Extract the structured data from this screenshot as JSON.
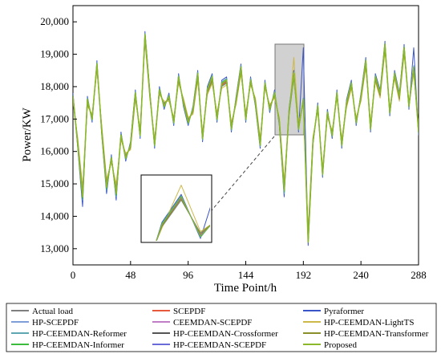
{
  "chart_data": {
    "type": "line",
    "title": "",
    "xlabel": "Time Point/h",
    "ylabel": "Power/KW",
    "xlim": [
      0,
      288
    ],
    "ylim": [
      12500,
      20500
    ],
    "x_ticks": [
      0,
      48,
      96,
      144,
      192,
      240,
      288
    ],
    "x_tick_labels": [
      "0",
      "48",
      "96",
      "144",
      "192",
      "240",
      "288"
    ],
    "y_ticks": [
      13000,
      14000,
      15000,
      16000,
      17000,
      18000,
      19000,
      20000
    ],
    "y_tick_labels": [
      "13,000",
      "14,000",
      "15,000",
      "16,000",
      "17,000",
      "18,000",
      "19,000",
      "20,000"
    ],
    "grid": false,
    "legend_position": "bottom",
    "inset": {
      "x_range": [
        176,
        190
      ],
      "y_range": [
        16500,
        19200
      ]
    },
    "x_points": [
      0,
      4,
      8,
      12,
      16,
      20,
      24,
      28,
      32,
      36,
      40,
      44,
      48,
      52,
      56,
      60,
      64,
      68,
      72,
      76,
      80,
      84,
      88,
      92,
      96,
      100,
      104,
      108,
      112,
      116,
      120,
      124,
      128,
      132,
      136,
      140,
      144,
      148,
      152,
      156,
      160,
      164,
      168,
      172,
      176,
      180,
      184,
      188,
      192,
      196,
      200,
      204,
      208,
      212,
      216,
      220,
      224,
      228,
      232,
      236,
      240,
      244,
      248,
      252,
      256,
      260,
      264,
      268,
      272,
      276,
      280,
      284,
      288
    ],
    "series": [
      {
        "name": "Actual load",
        "color": "#7f7f7f",
        "values": [
          17700,
          16200,
          14600,
          17600,
          17000,
          18700,
          16600,
          14900,
          15800,
          14700,
          16500,
          15800,
          16200,
          17800,
          16500,
          19600,
          17800,
          16200,
          17900,
          17400,
          17700,
          16900,
          18300,
          17500,
          16900,
          17300,
          18400,
          16400,
          17900,
          18300,
          17000,
          18100,
          18200,
          16700,
          17600,
          18600,
          17000,
          18200,
          17500,
          16200,
          18100,
          17300,
          17800,
          16900,
          14800,
          17200,
          18400,
          16700,
          17600,
          13200,
          16300,
          17400,
          15300,
          17200,
          16500,
          17800,
          16200,
          17500,
          18100,
          16900,
          17700,
          18800,
          16700,
          18300,
          17800,
          19300,
          17200,
          18400,
          17700,
          19200,
          17400,
          18600,
          16600
        ]
      },
      {
        "name": "SCEPDF",
        "color": "#e8583d",
        "values": [
          17650,
          16300,
          14700,
          17500,
          17050,
          18600,
          16700,
          15000,
          15750,
          14800,
          16450,
          15850,
          16150,
          17700,
          16600,
          19500,
          17750,
          16300,
          17850,
          17450,
          17650,
          16950,
          18200,
          17550,
          16950,
          17250,
          18300,
          16500,
          17850,
          18200,
          17100,
          18050,
          18150,
          16800,
          17550,
          18500,
          17100,
          18150,
          17550,
          16300,
          18050,
          17350,
          17750,
          16950,
          14900,
          17150,
          18300,
          16800,
          17550,
          13400,
          16350,
          17350,
          15400,
          17150,
          16550,
          17750,
          16300,
          17450,
          18050,
          16950,
          17650,
          18700,
          16800,
          18250,
          17750,
          19200,
          17250,
          18350,
          17650,
          19100,
          17450,
          18500,
          16700
        ]
      },
      {
        "name": "Pyraformer",
        "color": "#3a55c8",
        "values": [
          17800,
          16100,
          14300,
          17700,
          16900,
          18800,
          16500,
          14700,
          15900,
          14500,
          16600,
          15700,
          16300,
          17900,
          16400,
          19700,
          17900,
          16100,
          18000,
          17300,
          17800,
          16800,
          18400,
          17400,
          16800,
          17400,
          18500,
          16300,
          18000,
          18400,
          16900,
          18200,
          18300,
          16600,
          17700,
          18700,
          16900,
          18300,
          17400,
          16100,
          18200,
          17200,
          17900,
          16800,
          14600,
          17300,
          18500,
          16600,
          19200,
          13100,
          16200,
          17500,
          15200,
          17300,
          16400,
          17900,
          16100,
          17600,
          18200,
          16800,
          17800,
          18900,
          16600,
          18400,
          17900,
          19400,
          17100,
          18500,
          17800,
          19300,
          17300,
          19200,
          16500
        ]
      },
      {
        "name": "HP-SCEPDF",
        "color": "#7f9ed8",
        "values": [
          17600,
          16350,
          14800,
          17450,
          17100,
          18550,
          16750,
          15100,
          15700,
          14900,
          16400,
          15900,
          16100,
          17650,
          16650,
          19450,
          17700,
          16350,
          17800,
          17500,
          17600,
          17000,
          18150,
          17600,
          17000,
          17200,
          18250,
          16550,
          17800,
          18150,
          17150,
          18000,
          18100,
          16850,
          17500,
          18450,
          17150,
          18100,
          17600,
          16350,
          18000,
          17400,
          17700,
          17000,
          15000,
          17100,
          18250,
          16850,
          17500,
          13500,
          16400,
          17300,
          15450,
          17100,
          16600,
          17700,
          16350,
          17400,
          18000,
          17000,
          17600,
          18650,
          16850,
          18200,
          17700,
          19150,
          17300,
          18300,
          17600,
          19050,
          17500,
          18450,
          16750
        ]
      },
      {
        "name": "CEEMDAN-SCEPDF",
        "color": "#c07ec6",
        "values": [
          17700,
          16250,
          14650,
          17550,
          17000,
          18650,
          16650,
          14950,
          15800,
          14750,
          16500,
          15800,
          16200,
          17750,
          16550,
          19550,
          17800,
          16250,
          17900,
          17400,
          17700,
          16900,
          18250,
          17500,
          16900,
          17300,
          18350,
          16450,
          17900,
          18250,
          17050,
          18100,
          18200,
          16750,
          17600,
          18550,
          17050,
          18200,
          17500,
          16250,
          18100,
          17300,
          17800,
          16900,
          14850,
          17200,
          18350,
          16750,
          17600,
          13300,
          16300,
          17400,
          15350,
          17200,
          16500,
          17800,
          16250,
          17500,
          18100,
          16900,
          17700,
          18750,
          16750,
          18300,
          17800,
          19250,
          17200,
          18400,
          17700,
          19150,
          17400,
          18550,
          16650
        ]
      },
      {
        "name": "HP-CEEMDAN-LightTS",
        "color": "#cdb84a",
        "values": [
          17550,
          16400,
          14900,
          17400,
          17150,
          18500,
          16800,
          15150,
          15650,
          15000,
          16350,
          15950,
          16050,
          17600,
          16700,
          19400,
          17650,
          16400,
          17750,
          17550,
          17550,
          17050,
          18100,
          17650,
          17050,
          17150,
          18200,
          16600,
          17750,
          18100,
          17200,
          17950,
          18050,
          16900,
          17450,
          18400,
          17200,
          18050,
          17650,
          16400,
          17950,
          17450,
          17650,
          17050,
          15100,
          17050,
          18900,
          16900,
          17450,
          13600,
          16450,
          17250,
          15500,
          17050,
          16650,
          17650,
          16400,
          17350,
          17950,
          17050,
          17550,
          18600,
          16900,
          18150,
          17650,
          19100,
          17350,
          18250,
          17550,
          19000,
          17550,
          18400,
          16800
        ]
      },
      {
        "name": "HP-CEEMDAN-Reformer",
        "color": "#5fa6b3",
        "values": [
          17750,
          16150,
          14500,
          17650,
          16950,
          18750,
          16550,
          14800,
          15850,
          14600,
          16550,
          15750,
          16250,
          17850,
          16450,
          19650,
          17850,
          16150,
          17950,
          17350,
          17750,
          16850,
          18350,
          17450,
          16850,
          17350,
          18450,
          16350,
          17950,
          18350,
          16950,
          18150,
          18250,
          16650,
          17650,
          18650,
          16950,
          18250,
          17450,
          16150,
          18150,
          17250,
          17850,
          16850,
          14700,
          17250,
          18450,
          16650,
          17650,
          13250,
          16250,
          17450,
          15250,
          17250,
          16450,
          17850,
          16150,
          17550,
          18150,
          16850,
          17750,
          18850,
          16650,
          18350,
          17850,
          19350,
          17150,
          18450,
          17750,
          19250,
          17350,
          18650,
          16550
        ]
      },
      {
        "name": "HP-CEEMDAN-Crossformer",
        "color": "#555555",
        "values": [
          17680,
          16220,
          14620,
          17580,
          17020,
          18680,
          16620,
          14920,
          15820,
          14720,
          16520,
          15820,
          16180,
          17780,
          16520,
          19580,
          17780,
          16220,
          17880,
          17420,
          17680,
          16920,
          18280,
          17520,
          16920,
          17280,
          18380,
          16420,
          17880,
          18280,
          17020,
          18080,
          18180,
          16720,
          17580,
          18580,
          17020,
          18180,
          17520,
          16220,
          18080,
          17320,
          17780,
          16920,
          14820,
          17180,
          18380,
          16720,
          17580,
          13220,
          16320,
          17380,
          15320,
          17180,
          16520,
          17780,
          16220,
          17480,
          18080,
          16920,
          17680,
          18780,
          16720,
          18280,
          17780,
          19280,
          17220,
          18380,
          17680,
          19180,
          17420,
          18580,
          16620
        ]
      },
      {
        "name": "HP-CEEMDAN-Transformer",
        "color": "#8a8f2a",
        "values": [
          17620,
          16320,
          14750,
          17480,
          17080,
          18580,
          16720,
          15050,
          15720,
          14850,
          16420,
          15880,
          16120,
          17680,
          16620,
          19480,
          17720,
          16320,
          17820,
          17480,
          17620,
          16980,
          18180,
          17580,
          16980,
          17220,
          18280,
          16520,
          17820,
          18180,
          17120,
          18020,
          18120,
          16820,
          17520,
          18480,
          17120,
          18120,
          17580,
          16320,
          18020,
          17380,
          17720,
          16980,
          14950,
          17120,
          18280,
          16820,
          17520,
          13450,
          16380,
          17320,
          15420,
          17120,
          16580,
          17720,
          16320,
          17420,
          18020,
          16980,
          17620,
          18680,
          16820,
          18220,
          17720,
          19180,
          17280,
          18320,
          17620,
          19080,
          17480,
          18480,
          16720
        ]
      },
      {
        "name": "HP-CEEMDAN-Informer",
        "color": "#3dbb3d",
        "values": [
          17720,
          16180,
          14550,
          17620,
          16980,
          18720,
          16580,
          14850,
          15820,
          14650,
          16520,
          15780,
          16220,
          17820,
          16480,
          19620,
          17820,
          16180,
          17920,
          17380,
          17720,
          16880,
          18320,
          17480,
          16880,
          17320,
          18420,
          16380,
          17920,
          18320,
          16980,
          18120,
          18220,
          16680,
          17620,
          18620,
          16980,
          18220,
          17480,
          16180,
          18120,
          17280,
          17820,
          16880,
          14750,
          17220,
          18420,
          16680,
          17620,
          13280,
          16280,
          17420,
          15280,
          17220,
          16480,
          17820,
          16180,
          17520,
          18120,
          16880,
          17720,
          18820,
          16680,
          18320,
          17820,
          19320,
          17180,
          18420,
          17720,
          19220,
          17380,
          18620,
          16580
        ]
      },
      {
        "name": "HP-CEEMDAN-SCEPDF",
        "color": "#6a6ad8",
        "values": [
          17690,
          16210,
          14610,
          17590,
          17010,
          18690,
          16610,
          14910,
          15810,
          14710,
          16510,
          15810,
          16190,
          17790,
          16510,
          19590,
          17790,
          16210,
          17890,
          17410,
          17690,
          16910,
          18290,
          17510,
          16910,
          17290,
          18390,
          16410,
          17890,
          18290,
          17010,
          18090,
          18190,
          16710,
          17590,
          18590,
          17010,
          18190,
          17510,
          16210,
          18090,
          17310,
          17790,
          16910,
          14810,
          17190,
          18390,
          16710,
          17590,
          13210,
          16310,
          17390,
          15310,
          17190,
          16510,
          17790,
          16210,
          17490,
          18090,
          16910,
          17690,
          18790,
          16710,
          18290,
          17790,
          19290,
          17210,
          18390,
          17690,
          19190,
          17410,
          18590,
          16610
        ]
      },
      {
        "name": "Proposed",
        "color": "#8ab82a",
        "values": [
          17700,
          16200,
          14600,
          17600,
          17000,
          18700,
          16600,
          14900,
          15800,
          14700,
          16500,
          15800,
          16200,
          17800,
          16500,
          19600,
          17800,
          16200,
          17900,
          17400,
          17700,
          16900,
          18300,
          17500,
          16900,
          17300,
          18400,
          16400,
          17900,
          18300,
          17000,
          18100,
          18200,
          16700,
          17600,
          18600,
          17000,
          18200,
          17500,
          16200,
          18100,
          17300,
          17800,
          16900,
          14800,
          17200,
          18400,
          16700,
          17600,
          13200,
          16300,
          17400,
          15300,
          17200,
          16500,
          17800,
          16200,
          17500,
          18100,
          16900,
          17700,
          18800,
          16700,
          18300,
          17800,
          19300,
          17200,
          18400,
          17700,
          19200,
          17400,
          18600,
          16600
        ]
      }
    ]
  }
}
